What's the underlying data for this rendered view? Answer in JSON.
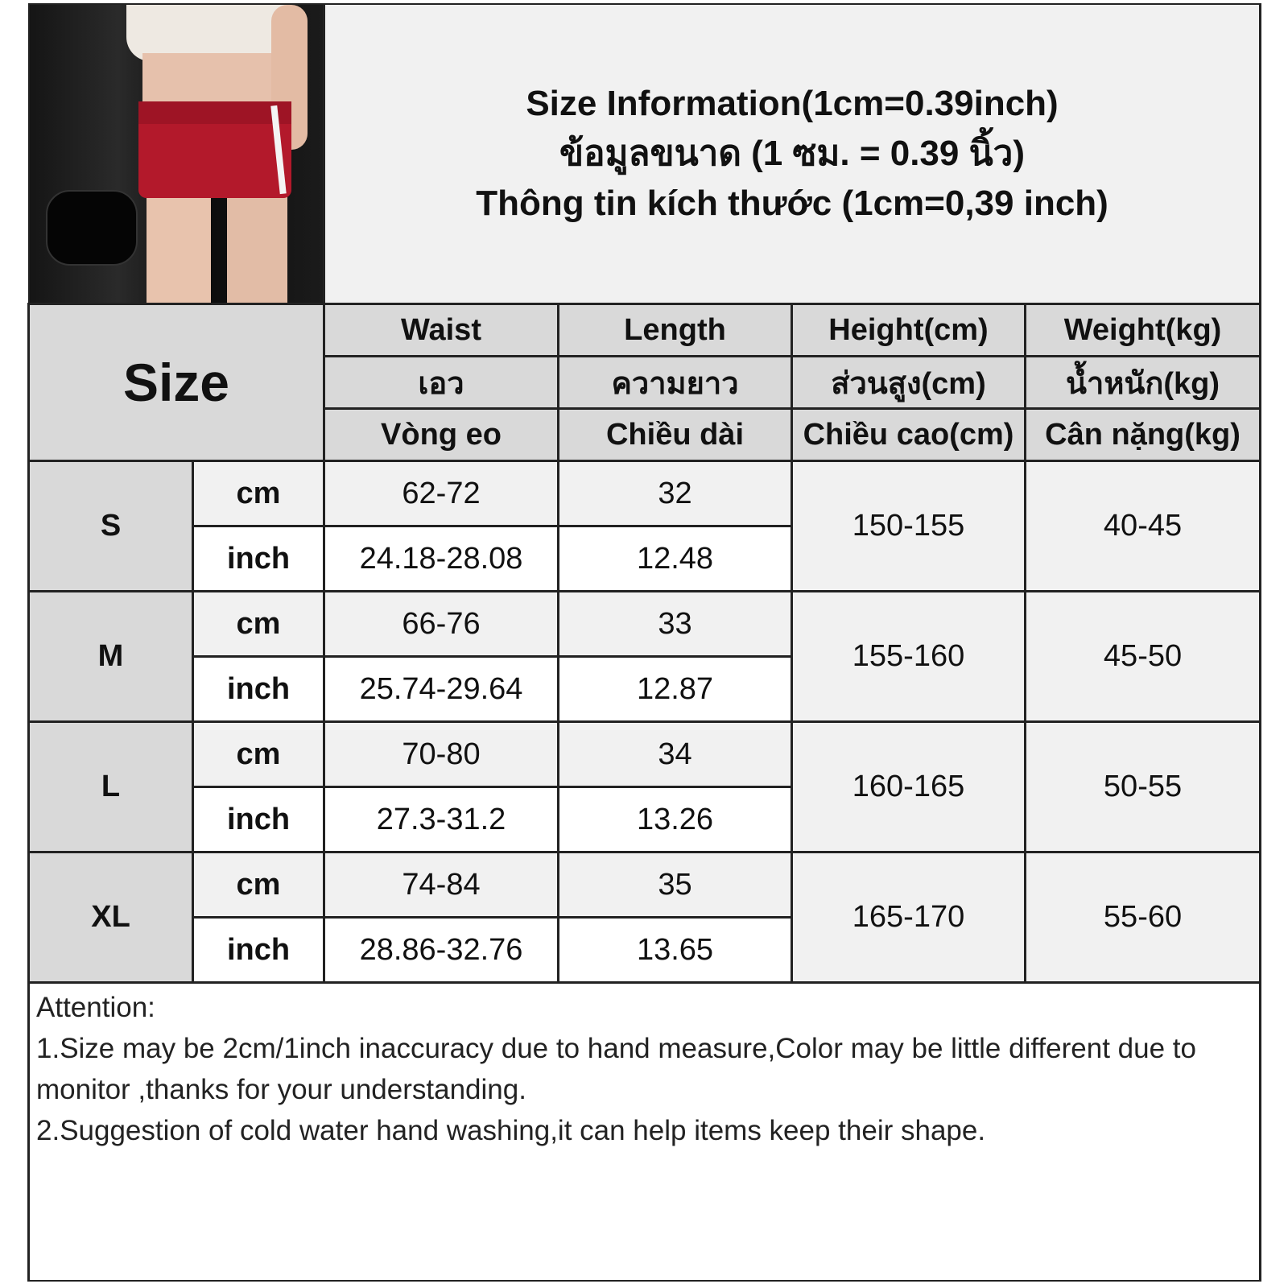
{
  "title": {
    "line1": "Size Information(1cm=0.39inch)",
    "line2": "ข้อมูลขนาด (1 ซม. = 0.39 นิ้ว)",
    "line3": "Thông tin kích thước (1cm=0,39 inch)"
  },
  "photo": {
    "alt": "model wearing red shorts with white side stripes"
  },
  "header": {
    "size": "Size",
    "columns": [
      {
        "en": "Waist",
        "th": "เอว",
        "vi": "Vòng eo"
      },
      {
        "en": "Length",
        "th": "ความยาว",
        "vi": "Chiều dài"
      },
      {
        "en": "Height(cm)",
        "th": "ส่วนสูง(cm)",
        "vi": "Chiều cao(cm)"
      },
      {
        "en": "Weight(kg)",
        "th": "น้ำหนัก(kg)",
        "vi": "Cân nặng(kg)"
      }
    ]
  },
  "units": {
    "cm": "cm",
    "inch": "inch"
  },
  "rows": [
    {
      "size": "S",
      "waist_cm": "62-72",
      "length_cm": "32",
      "waist_in": "24.18-28.08",
      "length_in": "12.48",
      "height": "150-155",
      "weight": "40-45"
    },
    {
      "size": "M",
      "waist_cm": "66-76",
      "length_cm": "33",
      "waist_in": "25.74-29.64",
      "length_in": "12.87",
      "height": "155-160",
      "weight": "45-50"
    },
    {
      "size": "L",
      "waist_cm": "70-80",
      "length_cm": "34",
      "waist_in": "27.3-31.2",
      "length_in": "13.26",
      "height": "160-165",
      "weight": "50-55"
    },
    {
      "size": "XL",
      "waist_cm": "74-84",
      "length_cm": "35",
      "waist_in": "28.86-32.76",
      "length_in": "13.65",
      "height": "165-170",
      "weight": "55-60"
    }
  ],
  "notes": {
    "heading": "Attention:",
    "line1": "1.Size may be 2cm/1inch inaccuracy due to hand measure,Color may be little different due to monitor ,thanks for your understanding.",
    "line2": "2.Suggestion of cold water hand washing,it can help items keep their shape."
  },
  "colors": {
    "header_bg": "#d9d9d9",
    "cm_row_bg": "#f1f1f1",
    "inch_row_bg": "#ffffff",
    "border": "#222222"
  }
}
